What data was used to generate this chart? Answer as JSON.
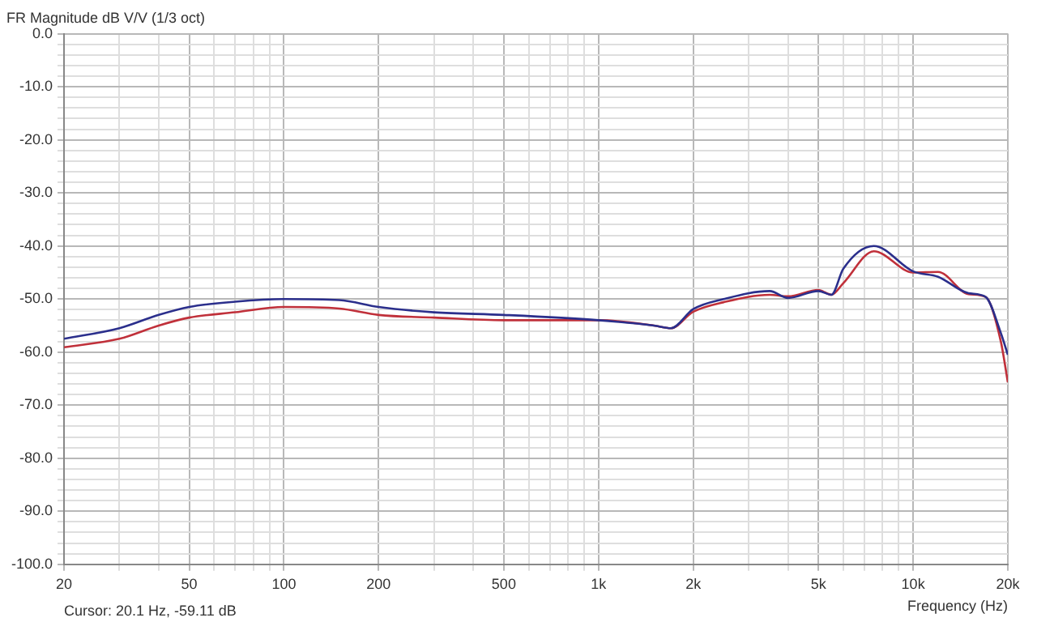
{
  "chart_data": {
    "type": "line",
    "title": "FR Magnitude dB V/V (1/3 oct)",
    "xlabel": "Frequency (Hz)",
    "log": "x",
    "grid": true,
    "annotations": [
      "Cursor: 20.1 Hz, -59.11 dB"
    ],
    "x": [
      20,
      30,
      40,
      50,
      70,
      100,
      150,
      200,
      300,
      500,
      1000,
      1500,
      1700,
      2000,
      2500,
      3500,
      4000,
      5000,
      5500,
      6000,
      7500,
      10000,
      12000,
      15000,
      17000,
      19000,
      20000
    ],
    "series": [
      {
        "color": "#2b2f8c",
        "values": [
          -57.5,
          -55.5,
          -53,
          -51.5,
          -50.5,
          -50,
          -50.2,
          -51.5,
          -52.5,
          -53,
          -54,
          -55,
          -55.5,
          -51.9,
          -50,
          -48.5,
          -49.8,
          -48.5,
          -49.2,
          -44.3,
          -40,
          -44.8,
          -45.8,
          -48.9,
          -49.6,
          -56.4,
          -60.5
        ]
      },
      {
        "color": "#c0303a",
        "values": [
          -59.1,
          -57.5,
          -55,
          -53.5,
          -52.5,
          -51.5,
          -51.8,
          -53,
          -53.5,
          -54,
          -54,
          -55,
          -55.5,
          -52.4,
          -50.6,
          -49.2,
          -49.5,
          -48.3,
          -49.2,
          -47,
          -41,
          -45,
          -44.9,
          -49.1,
          -49.6,
          -58,
          -65.7
        ]
      }
    ],
    "xlim": [
      20,
      20000
    ],
    "ylim": [
      -100,
      0
    ],
    "xticks": [
      20,
      {
        "value": 30,
        "label": null
      },
      {
        "value": 40,
        "label": null
      },
      50,
      {
        "value": 60,
        "label": null
      },
      {
        "value": 70,
        "label": null
      },
      {
        "value": 80,
        "label": null
      },
      {
        "value": 90,
        "label": null
      },
      100,
      200,
      {
        "value": 300,
        "label": null
      },
      {
        "value": 400,
        "label": null
      },
      500,
      {
        "value": 600,
        "label": null
      },
      {
        "value": 700,
        "label": null
      },
      {
        "value": 800,
        "label": null
      },
      {
        "value": 900,
        "label": null
      },
      {
        "value": 1000,
        "label": "1k"
      },
      {
        "value": 2000,
        "label": "2k"
      },
      {
        "value": 3000,
        "label": null
      },
      {
        "value": 4000,
        "label": null
      },
      {
        "value": 5000,
        "label": "5k"
      },
      {
        "value": 6000,
        "label": null
      },
      {
        "value": 7000,
        "label": null
      },
      {
        "value": 8000,
        "label": null
      },
      {
        "value": 9000,
        "label": null
      },
      {
        "value": 10000,
        "label": "10k"
      },
      {
        "value": 20000,
        "label": "20k"
      }
    ],
    "yticks": [
      {
        "value": -100,
        "label": "-100.0"
      },
      {
        "value": -98,
        "label": null
      },
      {
        "value": -96,
        "label": null
      },
      {
        "value": -94,
        "label": null
      },
      {
        "value": -92,
        "label": null
      },
      {
        "value": -90,
        "label": "-90.0"
      },
      {
        "value": -88,
        "label": null
      },
      {
        "value": -86,
        "label": null
      },
      {
        "value": -84,
        "label": null
      },
      {
        "value": -82,
        "label": null
      },
      {
        "value": -80,
        "label": "-80.0"
      },
      {
        "value": -78,
        "label": null
      },
      {
        "value": -76,
        "label": null
      },
      {
        "value": -74,
        "label": null
      },
      {
        "value": -72,
        "label": null
      },
      {
        "value": -70,
        "label": "-70.0"
      },
      {
        "value": -68,
        "label": null
      },
      {
        "value": -66,
        "label": null
      },
      {
        "value": -64,
        "label": null
      },
      {
        "value": -62,
        "label": null
      },
      {
        "value": -60,
        "label": "-60.0"
      },
      {
        "value": -58,
        "label": null
      },
      {
        "value": -56,
        "label": null
      },
      {
        "value": -54,
        "label": null
      },
      {
        "value": -52,
        "label": null
      },
      {
        "value": -50,
        "label": "-50.0"
      },
      {
        "value": -48,
        "label": null
      },
      {
        "value": -46,
        "label": null
      },
      {
        "value": -44,
        "label": null
      },
      {
        "value": -42,
        "label": null
      },
      {
        "value": -40,
        "label": "-40.0"
      },
      {
        "value": -38,
        "label": null
      },
      {
        "value": -36,
        "label": null
      },
      {
        "value": -34,
        "label": null
      },
      {
        "value": -32,
        "label": null
      },
      {
        "value": -30,
        "label": "-30.0"
      },
      {
        "value": -28,
        "label": null
      },
      {
        "value": -26,
        "label": null
      },
      {
        "value": -24,
        "label": null
      },
      {
        "value": -22,
        "label": null
      },
      {
        "value": -20,
        "label": "-20.0"
      },
      {
        "value": -18,
        "label": null
      },
      {
        "value": -16,
        "label": null
      },
      {
        "value": -14,
        "label": null
      },
      {
        "value": -12,
        "label": null
      },
      {
        "value": -10,
        "label": "-10.0"
      },
      {
        "value": -8,
        "label": null
      },
      {
        "value": -6,
        "label": null
      },
      {
        "value": -4,
        "label": null
      },
      {
        "value": -2,
        "label": null
      },
      {
        "value": 0,
        "label": "0.0"
      }
    ]
  }
}
